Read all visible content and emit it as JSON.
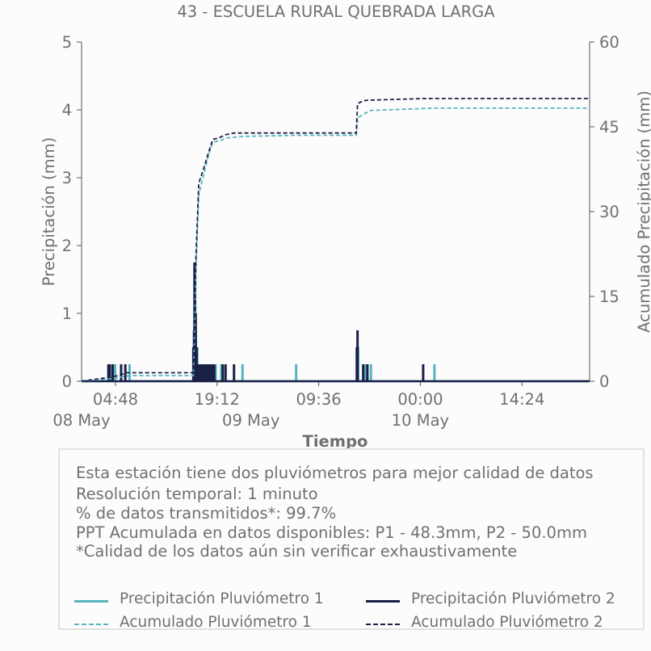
{
  "chart_data": {
    "type": "line",
    "title": "43 - ESCUELA RURAL QUEBRADA LARGA",
    "xlabel": "Tiempo",
    "ylabel_left": "Precipitación (mm)",
    "ylabel_right": "Acumulado Precipitación (mm)",
    "ylim_left": [
      0,
      5
    ],
    "ylim_right": [
      0,
      60
    ],
    "yticks_left": [
      "0",
      "1",
      "2",
      "3",
      "4",
      "5"
    ],
    "yticks_right": [
      "0",
      "15",
      "30",
      "45",
      "60"
    ],
    "xlim": [
      "2024-05-08 00:00",
      "2024-05-10 23:59"
    ],
    "xticks": [
      {
        "time": "2024-05-08 04:48",
        "label": "04:48"
      },
      {
        "time": "2024-05-08 19:12",
        "label": "19:12"
      },
      {
        "time": "2024-05-09 09:36",
        "label": "09:36"
      },
      {
        "time": "2024-05-10 00:00",
        "label": "00:00"
      },
      {
        "time": "2024-05-10 14:24",
        "label": "14:24"
      }
    ],
    "date_labels": [
      {
        "time": "2024-05-08 00:00",
        "label": "08 May"
      },
      {
        "time": "2024-05-09 00:00",
        "label": "09 May"
      },
      {
        "time": "2024-05-10 00:00",
        "label": "10 May"
      }
    ],
    "colors": {
      "p1": "#56b4bf",
      "p2": "#1a1f47"
    },
    "series": [
      {
        "name": "Precipitación Pluviómetro 1",
        "axis": "left",
        "style": "bars",
        "color": "#56b4bf",
        "points": [
          [
            "2024-05-08 04:36",
            0.25
          ],
          [
            "2024-05-08 04:45",
            0.25
          ],
          [
            "2024-05-08 06:48",
            0.25
          ],
          [
            "2024-05-08 15:58",
            0.5
          ],
          [
            "2024-05-08 16:00",
            1.0
          ],
          [
            "2024-05-08 16:06",
            1.5
          ],
          [
            "2024-05-08 16:12",
            0.75
          ],
          [
            "2024-05-08 16:24",
            0.5
          ],
          [
            "2024-05-08 16:48",
            0.25
          ],
          [
            "2024-05-08 17:12",
            0.25
          ],
          [
            "2024-05-08 17:36",
            0.25
          ],
          [
            "2024-05-08 18:00",
            0.25
          ],
          [
            "2024-05-08 18:24",
            0.25
          ],
          [
            "2024-05-08 19:00",
            0.25
          ],
          [
            "2024-05-08 19:48",
            0.25
          ],
          [
            "2024-05-08 22:48",
            0.25
          ],
          [
            "2024-05-09 06:24",
            0.25
          ],
          [
            "2024-05-09 15:12",
            0.5
          ],
          [
            "2024-05-09 16:12",
            0.25
          ],
          [
            "2024-05-09 17:00",
            0.25
          ],
          [
            "2024-05-10 02:00",
            0.25
          ]
        ]
      },
      {
        "name": "Precipitación Pluviómetro 2",
        "axis": "left",
        "style": "bars",
        "color": "#1a1f47",
        "points": [
          [
            "2024-05-08 03:48",
            0.25
          ],
          [
            "2024-05-08 04:00",
            0.25
          ],
          [
            "2024-05-08 04:24",
            0.25
          ],
          [
            "2024-05-08 05:36",
            0.25
          ],
          [
            "2024-05-08 06:12",
            0.25
          ],
          [
            "2024-05-08 15:50",
            0.5
          ],
          [
            "2024-05-08 15:56",
            0.75
          ],
          [
            "2024-05-08 16:00",
            1.75
          ],
          [
            "2024-05-08 16:04",
            1.25
          ],
          [
            "2024-05-08 16:10",
            1.0
          ],
          [
            "2024-05-08 16:18",
            0.5
          ],
          [
            "2024-05-08 16:30",
            0.25
          ],
          [
            "2024-05-08 16:48",
            0.25
          ],
          [
            "2024-05-08 17:06",
            0.25
          ],
          [
            "2024-05-08 17:24",
            0.25
          ],
          [
            "2024-05-08 17:42",
            0.25
          ],
          [
            "2024-05-08 18:00",
            0.25
          ],
          [
            "2024-05-08 18:18",
            0.25
          ],
          [
            "2024-05-08 18:36",
            0.25
          ],
          [
            "2024-05-08 18:48",
            0.25
          ],
          [
            "2024-05-08 20:00",
            0.25
          ],
          [
            "2024-05-08 20:24",
            0.25
          ],
          [
            "2024-05-08 21:36",
            0.25
          ],
          [
            "2024-05-09 15:00",
            0.5
          ],
          [
            "2024-05-09 15:06",
            0.75
          ],
          [
            "2024-05-09 15:54",
            0.25
          ],
          [
            "2024-05-09 16:30",
            0.25
          ],
          [
            "2024-05-10 00:24",
            0.25
          ]
        ]
      },
      {
        "name": "Acumulado Pluviómetro 1",
        "axis": "right",
        "style": "dashed-step",
        "color": "#56b4bf",
        "points": [
          [
            "2024-05-08 00:00",
            0
          ],
          [
            "2024-05-08 04:36",
            0.5
          ],
          [
            "2024-05-08 06:48",
            1.0
          ],
          [
            "2024-05-08 15:50",
            1.0
          ],
          [
            "2024-05-08 16:00",
            8
          ],
          [
            "2024-05-08 16:12",
            20
          ],
          [
            "2024-05-08 16:36",
            33
          ],
          [
            "2024-05-08 17:24",
            37
          ],
          [
            "2024-05-08 18:00",
            40
          ],
          [
            "2024-05-08 18:36",
            42.3
          ],
          [
            "2024-05-08 19:48",
            42.6
          ],
          [
            "2024-05-08 20:24",
            43.0
          ],
          [
            "2024-05-08 22:48",
            43.3
          ],
          [
            "2024-05-09 06:24",
            43.5
          ],
          [
            "2024-05-09 14:55",
            43.5
          ],
          [
            "2024-05-09 15:06",
            46.6
          ],
          [
            "2024-05-09 16:12",
            47.4
          ],
          [
            "2024-05-09 17:00",
            47.9
          ],
          [
            "2024-05-10 02:00",
            48.3
          ],
          [
            "2024-05-10 23:59",
            48.3
          ]
        ]
      },
      {
        "name": "Acumulado Pluviómetro 2",
        "axis": "right",
        "style": "dashed-step",
        "color": "#1a1f47",
        "points": [
          [
            "2024-05-08 00:00",
            0
          ],
          [
            "2024-05-08 04:00",
            0.7
          ],
          [
            "2024-05-08 05:36",
            1.1
          ],
          [
            "2024-05-08 06:12",
            1.5
          ],
          [
            "2024-05-08 15:50",
            1.5
          ],
          [
            "2024-05-08 16:00",
            10
          ],
          [
            "2024-05-08 16:12",
            22
          ],
          [
            "2024-05-08 16:36",
            35
          ],
          [
            "2024-05-08 17:24",
            38
          ],
          [
            "2024-05-08 18:00",
            40.5
          ],
          [
            "2024-05-08 18:36",
            42.8
          ],
          [
            "2024-05-08 19:24",
            43.0
          ],
          [
            "2024-05-08 20:24",
            43.6
          ],
          [
            "2024-05-08 21:36",
            43.9
          ],
          [
            "2024-05-09 14:55",
            43.9
          ],
          [
            "2024-05-09 15:06",
            49.1
          ],
          [
            "2024-05-09 15:54",
            49.6
          ],
          [
            "2024-05-09 16:30",
            49.7
          ],
          [
            "2024-05-10 00:24",
            50.0
          ],
          [
            "2024-05-10 23:59",
            50.0
          ]
        ]
      }
    ]
  },
  "info": {
    "lines": [
      "Esta estación tiene dos pluviómetros para mejor calidad de datos",
      "Resolución temporal: 1 minuto",
      "% de datos transmitidos*: 99.7%",
      "PPT Acumulada en datos disponibles: P1 - 48.3mm, P2 - 50.0mm",
      "*Calidad de los datos aún sin verificar exhaustivamente"
    ]
  },
  "legend": {
    "p1_precip": "Precipitación Pluviómetro 1",
    "p2_precip": "Precipitación Pluviómetro 2",
    "p1_accum": "Acumulado Pluviómetro 1",
    "p2_accum": "Acumulado Pluviómetro 2"
  }
}
